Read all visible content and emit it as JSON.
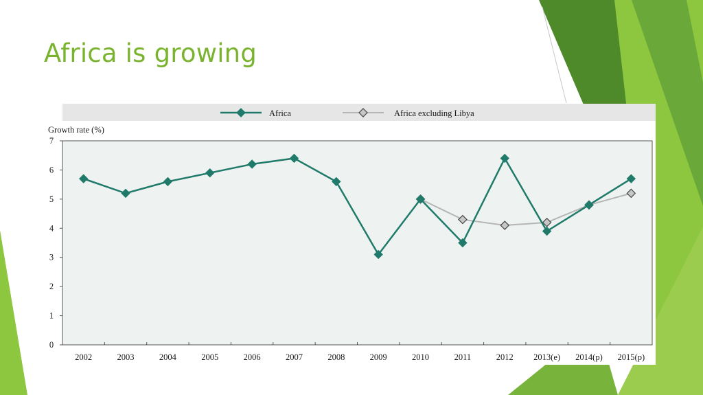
{
  "slide": {
    "title": "Africa is growing",
    "colors": {
      "title": "#7ab42f",
      "accent_light": "#8dc63f",
      "accent_dark": "#4e8a2a"
    }
  },
  "chart_data": {
    "type": "line",
    "ylabel": "Growth rate (%)",
    "xlabel": "",
    "categories": [
      "2002",
      "2003",
      "2004",
      "2005",
      "2006",
      "2007",
      "2008",
      "2009",
      "2010",
      "2011",
      "2012",
      "2013(e)",
      "2014(p)",
      "2015(p)"
    ],
    "ylim": [
      0,
      7
    ],
    "yticks": [
      0,
      1,
      2,
      3,
      4,
      5,
      6,
      7
    ],
    "grid": false,
    "legend_position": "top",
    "series": [
      {
        "name": "Africa",
        "color": "#1f7a6a",
        "marker": "filled-diamond",
        "values": [
          5.7,
          5.2,
          5.6,
          5.9,
          6.2,
          6.4,
          5.6,
          3.1,
          5.0,
          3.5,
          6.4,
          3.9,
          4.8,
          5.7
        ]
      },
      {
        "name": "Africa excluding Libya",
        "color": "#b5b5b5",
        "marker": "open-diamond",
        "values": [
          null,
          null,
          null,
          null,
          null,
          null,
          null,
          null,
          5.0,
          4.3,
          4.1,
          4.2,
          4.8,
          5.2
        ]
      }
    ]
  }
}
